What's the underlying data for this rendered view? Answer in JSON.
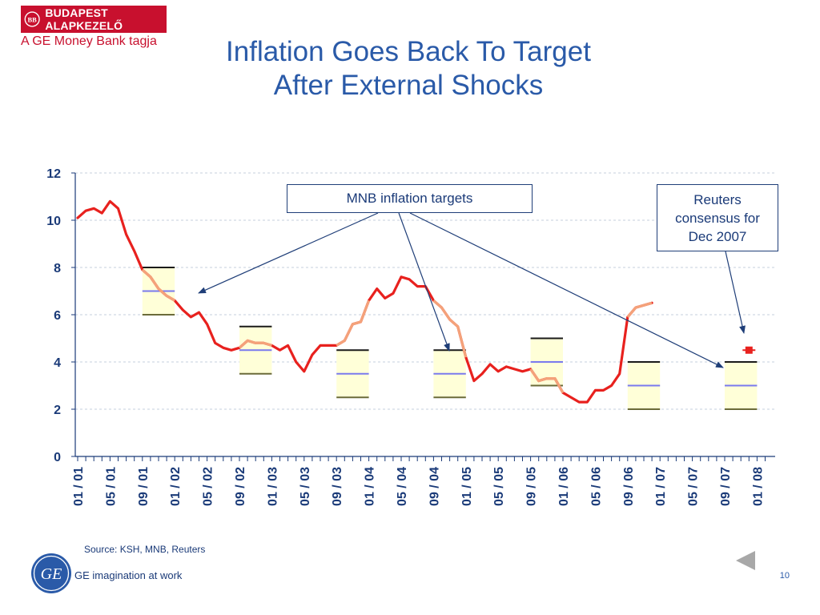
{
  "header": {
    "brand_name": "BUDAPEST ALAPKEZELŐ",
    "brand_subtitle": "A GE Money Bank tagja",
    "brand_color": "#c8102e"
  },
  "slide": {
    "title_line1": "Inflation Goes Back To Target",
    "title_line2": "After External Shocks",
    "source": "Source: KSH, MNB, Reuters",
    "tagline": "GE imagination at work",
    "page_number": "10",
    "back_icon": "back-arrow-icon"
  },
  "chart_data": {
    "type": "line",
    "title": "",
    "ylim": [
      0,
      12
    ],
    "yticks": [
      0,
      2,
      4,
      6,
      8,
      10,
      12
    ],
    "grid": true,
    "x_start": "2001-01",
    "x_end": "2008-01",
    "xticks": [
      "01 / 01",
      "05 / 01",
      "09 / 01",
      "01 / 02",
      "05 / 02",
      "09 / 02",
      "01 / 03",
      "05 / 03",
      "09 / 03",
      "01 / 04",
      "05 / 04",
      "09 / 04",
      "01 / 05",
      "05 / 05",
      "09 / 05",
      "01 / 06",
      "05 / 06",
      "09 / 06",
      "01 / 07",
      "05 / 07",
      "09 / 07",
      "01 / 08"
    ],
    "series": [
      {
        "color": "#e8211e",
        "points": [
          [
            "2001-01",
            10.1
          ],
          [
            "2001-02",
            10.4
          ],
          [
            "2001-03",
            10.5
          ],
          [
            "2001-04",
            10.3
          ],
          [
            "2001-05",
            10.8
          ],
          [
            "2001-06",
            10.5
          ],
          [
            "2001-07",
            9.4
          ],
          [
            "2001-08",
            8.7
          ],
          [
            "2001-09",
            7.9
          ],
          [
            "2001-10",
            7.6
          ],
          [
            "2001-11",
            7.1
          ],
          [
            "2001-12",
            6.8
          ],
          [
            "2002-01",
            6.6
          ],
          [
            "2002-02",
            6.2
          ],
          [
            "2002-03",
            5.9
          ],
          [
            "2002-04",
            6.1
          ],
          [
            "2002-05",
            5.6
          ],
          [
            "2002-06",
            4.8
          ],
          [
            "2002-07",
            4.6
          ],
          [
            "2002-08",
            4.5
          ],
          [
            "2002-09",
            4.6
          ],
          [
            "2002-10",
            4.9
          ],
          [
            "2002-11",
            4.8
          ],
          [
            "2002-12",
            4.8
          ],
          [
            "2003-01",
            4.7
          ],
          [
            "2003-02",
            4.5
          ],
          [
            "2003-03",
            4.7
          ],
          [
            "2003-04",
            4.0
          ],
          [
            "2003-05",
            3.6
          ],
          [
            "2003-06",
            4.3
          ],
          [
            "2003-07",
            4.7
          ],
          [
            "2003-08",
            4.7
          ],
          [
            "2003-09",
            4.7
          ],
          [
            "2003-10",
            4.9
          ],
          [
            "2003-11",
            5.6
          ],
          [
            "2003-12",
            5.7
          ],
          [
            "2004-01",
            6.6
          ],
          [
            "2004-02",
            7.1
          ],
          [
            "2004-03",
            6.7
          ],
          [
            "2004-04",
            6.9
          ],
          [
            "2004-05",
            7.6
          ],
          [
            "2004-06",
            7.5
          ],
          [
            "2004-07",
            7.2
          ],
          [
            "2004-08",
            7.2
          ],
          [
            "2004-09",
            6.6
          ],
          [
            "2004-10",
            6.3
          ],
          [
            "2004-11",
            5.8
          ],
          [
            "2004-12",
            5.5
          ],
          [
            "2005-01",
            4.2
          ],
          [
            "2005-02",
            3.2
          ],
          [
            "2005-03",
            3.5
          ],
          [
            "2005-04",
            3.9
          ],
          [
            "2005-05",
            3.6
          ],
          [
            "2005-06",
            3.8
          ],
          [
            "2005-07",
            3.7
          ],
          [
            "2005-08",
            3.6
          ],
          [
            "2005-09",
            3.7
          ],
          [
            "2005-10",
            3.2
          ],
          [
            "2005-11",
            3.3
          ],
          [
            "2005-12",
            3.3
          ],
          [
            "2006-01",
            2.7
          ],
          [
            "2006-02",
            2.5
          ],
          [
            "2006-03",
            2.3
          ],
          [
            "2006-04",
            2.3
          ],
          [
            "2006-05",
            2.8
          ],
          [
            "2006-06",
            2.8
          ],
          [
            "2006-07",
            3.0
          ],
          [
            "2006-08",
            3.5
          ],
          [
            "2006-09",
            5.9
          ],
          [
            "2006-10",
            6.3
          ],
          [
            "2006-11",
            6.4
          ],
          [
            "2006-12",
            6.5
          ]
        ]
      }
    ],
    "target_bands": [
      {
        "from": "2001-09",
        "to": "2002-01",
        "low": 6,
        "mid": 7,
        "high": 8
      },
      {
        "from": "2002-09",
        "to": "2003-01",
        "low": 3.5,
        "mid": 4.5,
        "high": 5.5
      },
      {
        "from": "2003-09",
        "to": "2004-01",
        "low": 2.5,
        "mid": 3.5,
        "high": 4.5
      },
      {
        "from": "2004-09",
        "to": "2005-01",
        "low": 2.5,
        "mid": 3.5,
        "high": 4.5
      },
      {
        "from": "2005-09",
        "to": "2006-01",
        "low": 3,
        "mid": 4,
        "high": 5
      },
      {
        "from": "2006-09",
        "to": "2007-01",
        "low": 2,
        "mid": 3,
        "high": 4
      },
      {
        "from": "2007-09",
        "to": "2008-01",
        "low": 2,
        "mid": 3,
        "high": 4
      }
    ],
    "band_colors": {
      "fill": "#ffffd8",
      "mid_line": "#7a7aee",
      "edge_line": "#1a1a1a",
      "overlap_line": "#f4a27a"
    },
    "reuters_consensus": {
      "date": "2007-12",
      "value": 4.5,
      "color": "#e8211e"
    },
    "annotations": [
      {
        "text": "MNB inflation targets"
      },
      {
        "text_lines": [
          "Reuters",
          "consensus for",
          "Dec 2007"
        ]
      }
    ],
    "axis_color": "#1a3a78"
  }
}
